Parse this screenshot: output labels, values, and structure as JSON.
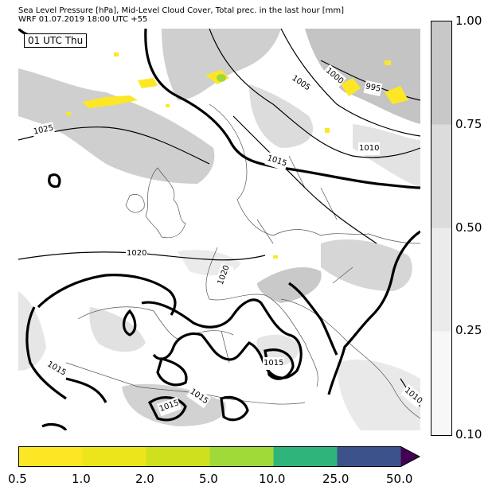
{
  "title": {
    "line1": "Sea Level Pressure [hPa], Mid-Level Cloud Cover, Total prec. in the last hour [mm]",
    "line2": "WRF 01.07.2019 18:00 UTC +55"
  },
  "valid_time": "01 UTC Thu",
  "isobar_labels": [
    "1025",
    "1020",
    "1015",
    "1015",
    "1015",
    "1015",
    "1015",
    "1010",
    "1010",
    "1005",
    "1000",
    "995",
    "1020"
  ],
  "cloud_colorbar": {
    "ticks": [
      "1.00",
      "0.75",
      "0.50",
      "0.25",
      "0.10"
    ],
    "colors": [
      "#c8c8c8",
      "#dcdcdc",
      "#ebebeb",
      "#f7f7f7"
    ]
  },
  "precip_colorbar": {
    "ticks": [
      "0.5",
      "1.0",
      "2.0",
      "5.0",
      "10.0",
      "25.0",
      "50.0"
    ],
    "colors": [
      "#fde725",
      "#ece51b",
      "#cfe11c",
      "#a0da39",
      "#2fb47c",
      "#3b528b",
      "#440154"
    ]
  }
}
